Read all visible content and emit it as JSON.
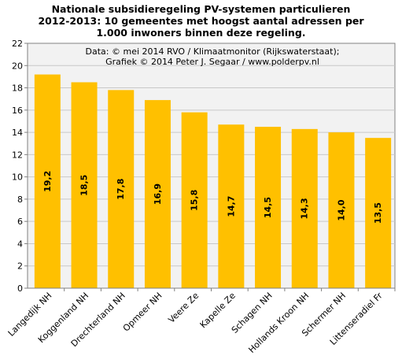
{
  "chart_data": {
    "type": "bar",
    "title_lines": [
      "Nationale subsidieregeling PV-systemen particulieren",
      "2012-2013: 10 gemeentes met hoogst aantal  adressen per",
      "1.000 inwoners binnen deze regeling."
    ],
    "annotation_lines": [
      "Data: © mei 2014 RVO / Klimaatmonitor (Rijkswaterstaat);",
      "Grafiek © 2014 Peter J. Segaar / www.polderpv.nl"
    ],
    "categories": [
      "Langedijk NH",
      "Koggenland NH",
      "Drechterland NH",
      "Opmeer NH",
      "Veere Ze",
      "Kapelle Ze",
      "Schagen NH",
      "Hollands Kroon NH",
      "Schermer NH",
      "Littenseradiel Fr"
    ],
    "values": [
      19.2,
      18.5,
      17.8,
      16.9,
      15.8,
      14.7,
      14.5,
      14.3,
      14.0,
      13.5
    ],
    "data_labels": [
      "19,2",
      "18,5",
      "17,8",
      "16,9",
      "15,8",
      "14,7",
      "14,5",
      "14,3",
      "14,0",
      "13,5"
    ],
    "ylim": [
      0,
      22
    ],
    "yticks": [
      "0",
      "2",
      "4",
      "6",
      "8",
      "10",
      "12",
      "14",
      "16",
      "18",
      "20",
      "22"
    ],
    "xlabel": "",
    "ylabel": "",
    "grid": true,
    "legend": "none",
    "colors": {
      "bar": "#FFC000",
      "plot_bg": "#F2F2F2",
      "grid": "#C8C8C8",
      "axis": "#808080"
    }
  }
}
